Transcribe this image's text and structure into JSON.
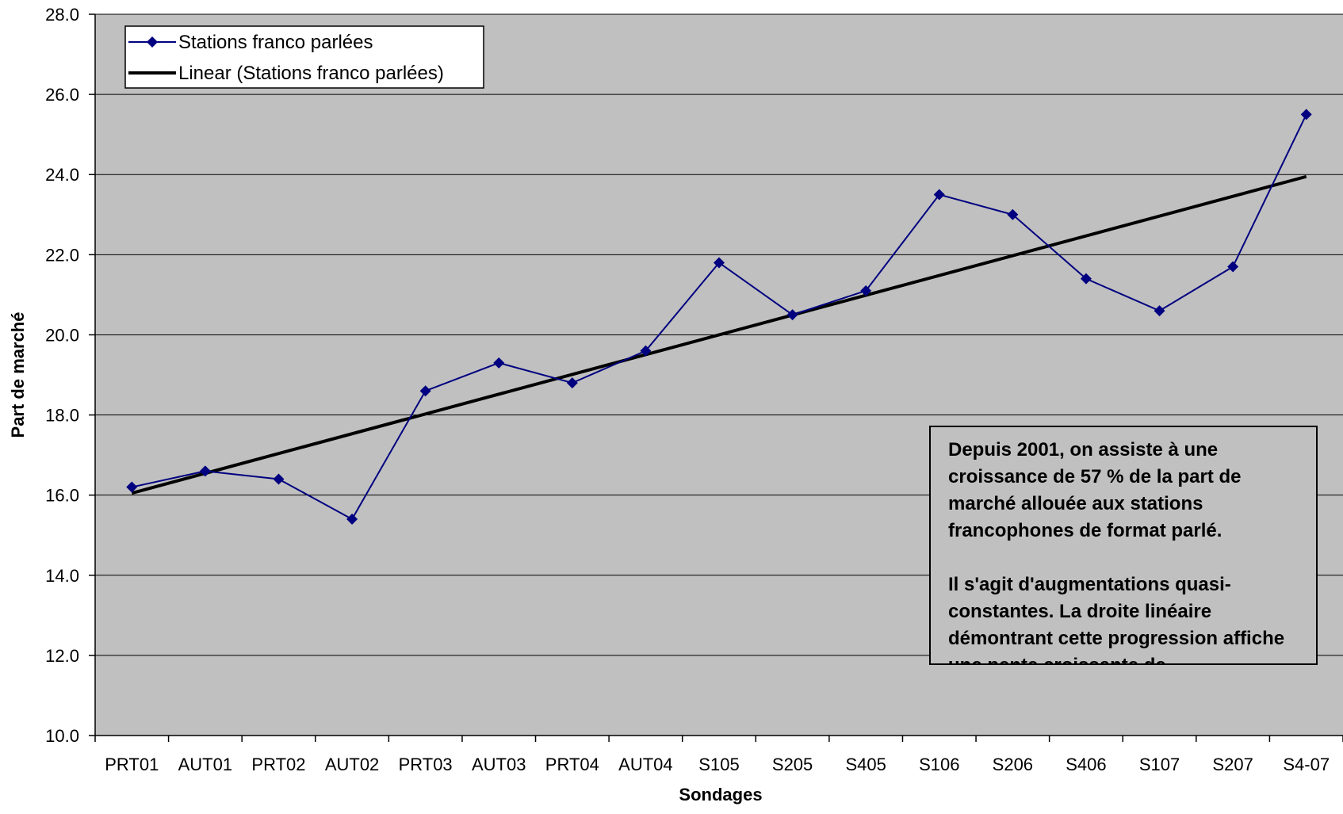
{
  "chart_data": {
    "type": "line",
    "categories": [
      "PRT01",
      "AUT01",
      "PRT02",
      "AUT02",
      "PRT03",
      "AUT03",
      "PRT04",
      "AUT04",
      "S105",
      "S205",
      "S405",
      "S106",
      "S206",
      "S406",
      "S107",
      "S207",
      "S4-07"
    ],
    "series": [
      {
        "name": "Stations franco parlées",
        "values": [
          16.2,
          16.6,
          16.4,
          15.4,
          18.6,
          19.3,
          18.8,
          19.6,
          21.8,
          20.5,
          21.1,
          23.5,
          23.0,
          21.4,
          20.6,
          21.7,
          25.5
        ],
        "color": "#000080",
        "marker": "diamond"
      },
      {
        "name": "Linear (Stations franco parlées)",
        "type": "trendline",
        "start": 16.05,
        "end": 23.95,
        "color": "#000000"
      }
    ],
    "xlabel": "Sondages",
    "ylabel": "Part de marché",
    "ylim": [
      10.0,
      28.0
    ],
    "yticks": [
      "10.0",
      "12.0",
      "14.0",
      "16.0",
      "18.0",
      "20.0",
      "22.0",
      "24.0",
      "26.0",
      "28.0"
    ],
    "grid": "horizontal",
    "plot_background": "#c0c0c0",
    "legend": "top-left",
    "annotation": {
      "paragraphs": [
        "Depuis 2001, on assiste à une croissance de 57 % de la part de marché allouée aux stations francophones de format parlé.",
        "Il s'agit d'augmentations quasi-constantes. La droite linéaire démontrant cette progression affiche une pente croissante de"
      ]
    }
  }
}
